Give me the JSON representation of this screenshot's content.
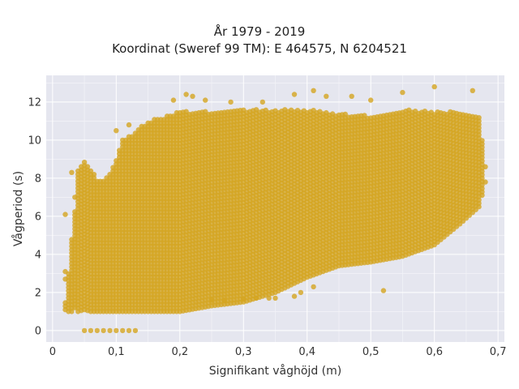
{
  "chart_data": {
    "type": "scatter",
    "title": "År 1979 - 2019",
    "subtitle": "Koordinat (Sweref 99 TM): E 464575, N 6204521",
    "xlabel": "Signifikant våghöjd (m)",
    "ylabel": "Vågperiod (s)",
    "xlim": [
      -0.01,
      0.71
    ],
    "ylim": [
      -0.6,
      13.4
    ],
    "xticks": [
      0,
      0.1,
      0.2,
      0.3,
      0.4,
      0.5,
      0.6,
      0.7
    ],
    "xtick_labels": [
      "0",
      "0,1",
      "0,2",
      "0,3",
      "0,4",
      "0,5",
      "0,6",
      "0,7"
    ],
    "yticks": [
      0,
      2,
      4,
      6,
      8,
      10,
      12
    ],
    "ytick_labels": [
      "0",
      "2",
      "4",
      "6",
      "8",
      "10",
      "12"
    ],
    "grid": true,
    "background": "#e5e6ef",
    "marker_color": "#d4a521",
    "series": [
      {
        "x_step": 0.005,
        "columns": [
          {
            "x": 0.02,
            "y": [
              1.1,
              1.5
            ]
          },
          {
            "x": 0.025,
            "y": [
              1.0,
              3.0
            ]
          },
          {
            "x": 0.03,
            "y": [
              1.0,
              4.8
            ]
          },
          {
            "x": 0.035,
            "y": [
              1.2,
              6.3
            ]
          },
          {
            "x": 0.04,
            "y": [
              1.0,
              8.5
            ]
          },
          {
            "x": 0.05,
            "y": [
              1.1,
              9.0
            ]
          },
          {
            "x": 0.06,
            "y": [
              1.0,
              8.5
            ]
          },
          {
            "x": 0.07,
            "y": [
              1.0,
              8.0
            ]
          },
          {
            "x": 0.08,
            "y": [
              1.0,
              8.0
            ]
          },
          {
            "x": 0.09,
            "y": [
              1.0,
              8.3
            ]
          },
          {
            "x": 0.1,
            "y": [
              1.0,
              9.0
            ]
          },
          {
            "x": 0.11,
            "y": [
              1.0,
              10.0
            ]
          },
          {
            "x": 0.12,
            "y": [
              1.0,
              10.2
            ]
          },
          {
            "x": 0.13,
            "y": [
              1.0,
              10.5
            ]
          },
          {
            "x": 0.15,
            "y": [
              1.0,
              11.0
            ]
          },
          {
            "x": 0.17,
            "y": [
              1.0,
              11.2
            ]
          },
          {
            "x": 0.2,
            "y": [
              1.0,
              11.5
            ]
          },
          {
            "x": 0.25,
            "y": [
              1.3,
              11.5
            ]
          },
          {
            "x": 0.3,
            "y": [
              1.5,
              11.6
            ]
          },
          {
            "x": 0.35,
            "y": [
              2.0,
              11.6
            ]
          },
          {
            "x": 0.4,
            "y": [
              2.8,
              11.6
            ]
          },
          {
            "x": 0.45,
            "y": [
              3.4,
              11.4
            ]
          },
          {
            "x": 0.5,
            "y": [
              3.6,
              11.3
            ]
          },
          {
            "x": 0.55,
            "y": [
              3.9,
              11.6
            ]
          },
          {
            "x": 0.6,
            "y": [
              4.5,
              11.5
            ]
          },
          {
            "x": 0.64,
            "y": [
              5.6,
              11.5
            ]
          },
          {
            "x": 0.67,
            "y": [
              6.5,
              11.2
            ]
          },
          {
            "x": 0.68,
            "y": [
              7.7,
              9.0
            ]
          }
        ],
        "extra_points": [
          {
            "x": 0.05,
            "y": 0
          },
          {
            "x": 0.06,
            "y": 0
          },
          {
            "x": 0.07,
            "y": 0
          },
          {
            "x": 0.08,
            "y": 0
          },
          {
            "x": 0.09,
            "y": 0
          },
          {
            "x": 0.1,
            "y": 0
          },
          {
            "x": 0.11,
            "y": 0
          },
          {
            "x": 0.12,
            "y": 0
          },
          {
            "x": 0.13,
            "y": 0
          },
          {
            "x": 0.02,
            "y": 6.1
          },
          {
            "x": 0.02,
            "y": 3.1
          },
          {
            "x": 0.02,
            "y": 2.7
          },
          {
            "x": 0.03,
            "y": 8.3
          },
          {
            "x": 0.035,
            "y": 7.0
          },
          {
            "x": 0.1,
            "y": 10.5
          },
          {
            "x": 0.12,
            "y": 10.8
          },
          {
            "x": 0.19,
            "y": 12.1
          },
          {
            "x": 0.21,
            "y": 12.4
          },
          {
            "x": 0.22,
            "y": 12.3
          },
          {
            "x": 0.24,
            "y": 12.1
          },
          {
            "x": 0.28,
            "y": 12.0
          },
          {
            "x": 0.33,
            "y": 12.0
          },
          {
            "x": 0.38,
            "y": 12.4
          },
          {
            "x": 0.41,
            "y": 12.6
          },
          {
            "x": 0.43,
            "y": 12.3
          },
          {
            "x": 0.47,
            "y": 12.3
          },
          {
            "x": 0.5,
            "y": 12.1
          },
          {
            "x": 0.55,
            "y": 12.5
          },
          {
            "x": 0.6,
            "y": 12.8
          },
          {
            "x": 0.66,
            "y": 12.6
          },
          {
            "x": 0.52,
            "y": 2.1
          },
          {
            "x": 0.41,
            "y": 2.3
          },
          {
            "x": 0.39,
            "y": 2.0
          },
          {
            "x": 0.38,
            "y": 1.8
          },
          {
            "x": 0.35,
            "y": 1.7
          },
          {
            "x": 0.68,
            "y": 7.8
          },
          {
            "x": 0.68,
            "y": 8.6
          },
          {
            "x": 0.25,
            "y": 1.6
          },
          {
            "x": 0.27,
            "y": 1.6
          },
          {
            "x": 0.3,
            "y": 1.65
          },
          {
            "x": 0.32,
            "y": 1.7
          },
          {
            "x": 0.34,
            "y": 1.7
          }
        ]
      }
    ]
  }
}
